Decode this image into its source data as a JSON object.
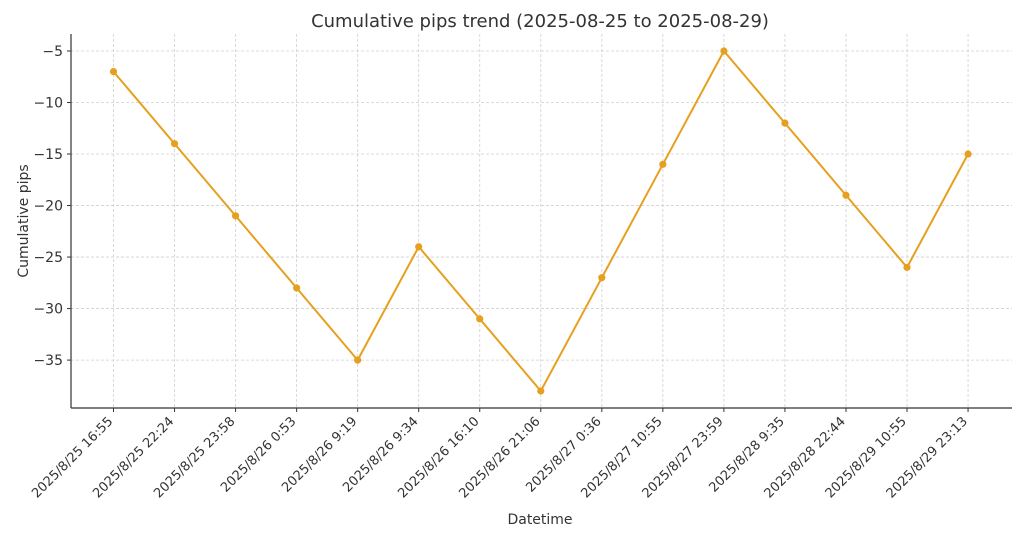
{
  "chart_data": {
    "type": "line",
    "title": "Cumulative pips trend (2025-08-25 to 2025-08-29)",
    "xlabel": "Datetime",
    "ylabel": "Cumulative pips",
    "categories": [
      "2025/8/25 16:55",
      "2025/8/25 22:24",
      "2025/8/25 23:58",
      "2025/8/26 0:53",
      "2025/8/26 9:19",
      "2025/8/26 9:34",
      "2025/8/26 16:10",
      "2025/8/26 21:06",
      "2025/8/27 0:36",
      "2025/8/27 10:55",
      "2025/8/27 23:59",
      "2025/8/28 9:35",
      "2025/8/28 22:44",
      "2025/8/29 10:55",
      "2025/8/29 23:13"
    ],
    "values": [
      -7,
      -14,
      -21,
      -28,
      -35,
      -24,
      -31,
      -38,
      -27,
      -16,
      -5,
      -12,
      -19,
      -26,
      -15
    ],
    "yticks": [
      {
        "value": -5,
        "label": "−5"
      },
      {
        "value": -10,
        "label": "−10"
      },
      {
        "value": -15,
        "label": "−15"
      },
      {
        "value": -20,
        "label": "−20"
      },
      {
        "value": -25,
        "label": "−25"
      },
      {
        "value": -30,
        "label": "−30"
      },
      {
        "value": -35,
        "label": "−35"
      }
    ],
    "ylim": [
      -39.65,
      -3.35
    ],
    "grid": true,
    "line_color": "#E6A01E"
  }
}
